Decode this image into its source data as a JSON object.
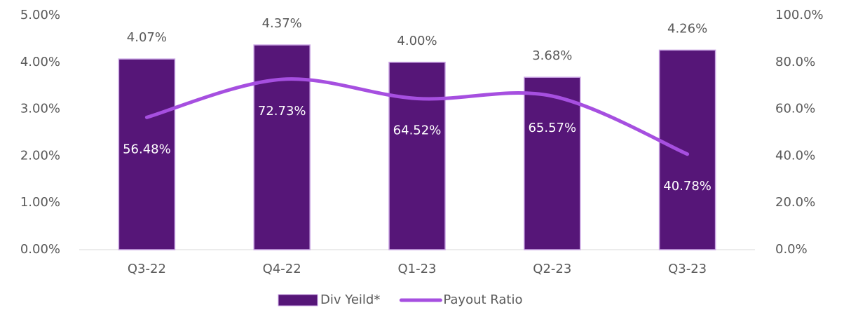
{
  "chart_data": {
    "type": "bar",
    "categories": [
      "Q3-22",
      "Q4-22",
      "Q1-23",
      "Q2-23",
      "Q3-23"
    ],
    "series": [
      {
        "name": "Div Yeild*",
        "color": "#561678",
        "values": [
          4.07,
          4.37,
          4.0,
          3.68,
          4.26
        ],
        "value_labels": [
          "4.07%",
          "4.37%",
          "4.00%",
          "3.68%",
          "4.26%"
        ]
      },
      {
        "name": "Payout Ratio",
        "type": "line",
        "axis": "y2",
        "color": "#a64fe0",
        "values": [
          56.48,
          72.73,
          64.52,
          65.57,
          40.78
        ],
        "value_labels": [
          "56.48%",
          "72.73%",
          "64.52%",
          "65.57%",
          "40.78%"
        ]
      }
    ],
    "ylim": [
      0,
      5
    ],
    "yticks": [
      {
        "value": 0,
        "label": "0.00%"
      },
      {
        "value": 1,
        "label": "1.00%"
      },
      {
        "value": 2,
        "label": "2.00%"
      },
      {
        "value": 3,
        "label": "3.00%"
      },
      {
        "value": 4,
        "label": "4.00%"
      },
      {
        "value": 5,
        "label": "5.00%"
      }
    ],
    "y2lim": [
      0,
      100
    ],
    "y2ticks": [
      {
        "value": 0,
        "label": "0.0%"
      },
      {
        "value": 20,
        "label": "20.0%"
      },
      {
        "value": 40,
        "label": "40.0%"
      },
      {
        "value": 60,
        "label": "60.0%"
      },
      {
        "value": 80,
        "label": "80.0%"
      },
      {
        "value": 100,
        "label": "100.0%"
      }
    ],
    "legend": "bottom"
  }
}
